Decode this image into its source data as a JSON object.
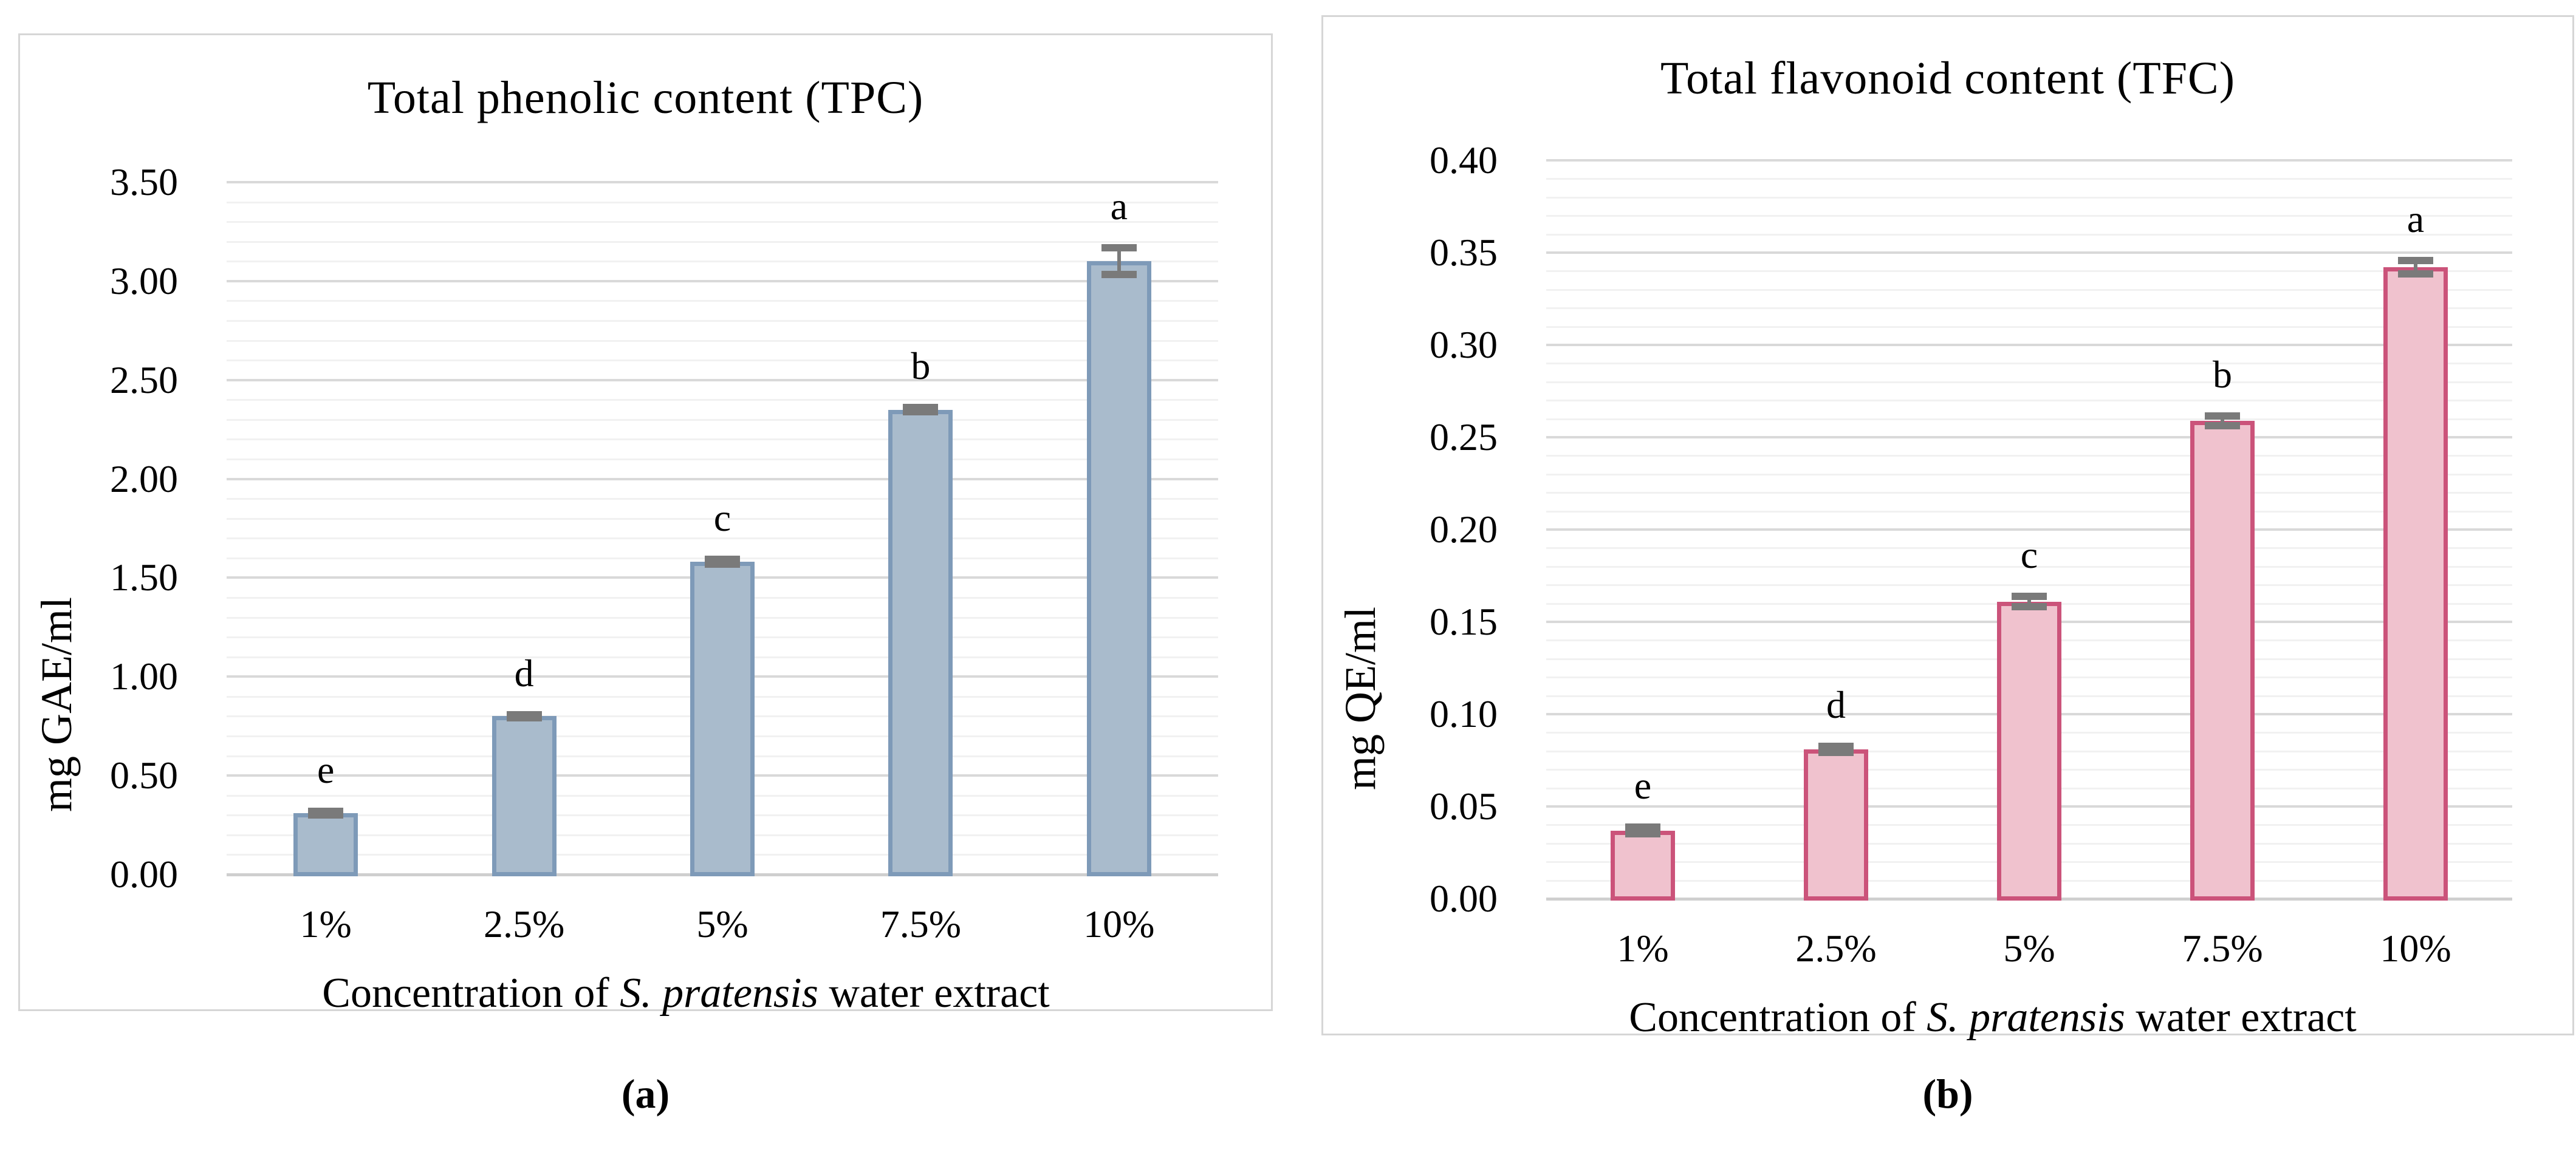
{
  "figure": {
    "description": "Two-panel bar figure: total phenolic and total flavonoid content of S. pratensis water extract"
  },
  "colors": {
    "tpc_bar_fill": "#a9bbcc",
    "tpc_bar_border": "#7e9ab8",
    "tfc_bar_fill": "#f0c2ce",
    "tfc_bar_border": "#cb537a",
    "error_bar": "#7a7a7a",
    "grid_major": "#d9d9d9",
    "grid_minor": "#f1f1f1",
    "axis_line": "#cfcfcf",
    "panel_border": "#d6d6d6",
    "text": "#000000"
  },
  "chart_data": [
    {
      "id": "chart-tpc",
      "type": "bar",
      "title": "Total phenolic content (TPC)",
      "ylabel": "mg GAE/ml",
      "xlabel_parts": [
        {
          "text": "Concentration of ",
          "italic": false
        },
        {
          "text": "S. pratensis",
          "italic": true
        },
        {
          "text": " water extract",
          "italic": false
        }
      ],
      "categories": [
        "1%",
        "2.5%",
        "5%",
        "7.5%",
        "10%"
      ],
      "values": [
        0.31,
        0.8,
        1.58,
        2.35,
        3.1
      ],
      "errors": [
        0.012,
        0.012,
        0.015,
        0.015,
        0.07
      ],
      "sig_letters": [
        "e",
        "d",
        "c",
        "b",
        "a"
      ],
      "ylim": [
        0,
        3.5
      ],
      "ytick_step": 0.5,
      "minor_step": 0.1,
      "ytick_labels": [
        "0.00",
        "0.50",
        "1.00",
        "1.50",
        "2.00",
        "2.50",
        "3.00",
        "3.50"
      ],
      "grid": "on",
      "legend": "none",
      "caption": "(a)"
    },
    {
      "id": "chart-tfc",
      "type": "bar",
      "title": "Total flavonoid content (TFC)",
      "ylabel": "mg QE/ml",
      "xlabel_parts": [
        {
          "text": "Concentration of ",
          "italic": false
        },
        {
          "text": "S. pratensis",
          "italic": true
        },
        {
          "text": " water extract",
          "italic": false
        }
      ],
      "categories": [
        "1%",
        "2.5%",
        "5%",
        "7.5%",
        "10%"
      ],
      "values": [
        0.037,
        0.081,
        0.161,
        0.259,
        0.342
      ],
      "errors": [
        0.002,
        0.002,
        0.003,
        0.003,
        0.004
      ],
      "sig_letters": [
        "e",
        "d",
        "c",
        "b",
        "a"
      ],
      "ylim": [
        0,
        0.4
      ],
      "ytick_step": 0.05,
      "minor_step": 0.01,
      "ytick_labels": [
        "0.00",
        "0.05",
        "0.10",
        "0.15",
        "0.20",
        "0.25",
        "0.30",
        "0.35",
        "0.40"
      ],
      "grid": "on",
      "legend": "none",
      "caption": "(b)"
    }
  ]
}
